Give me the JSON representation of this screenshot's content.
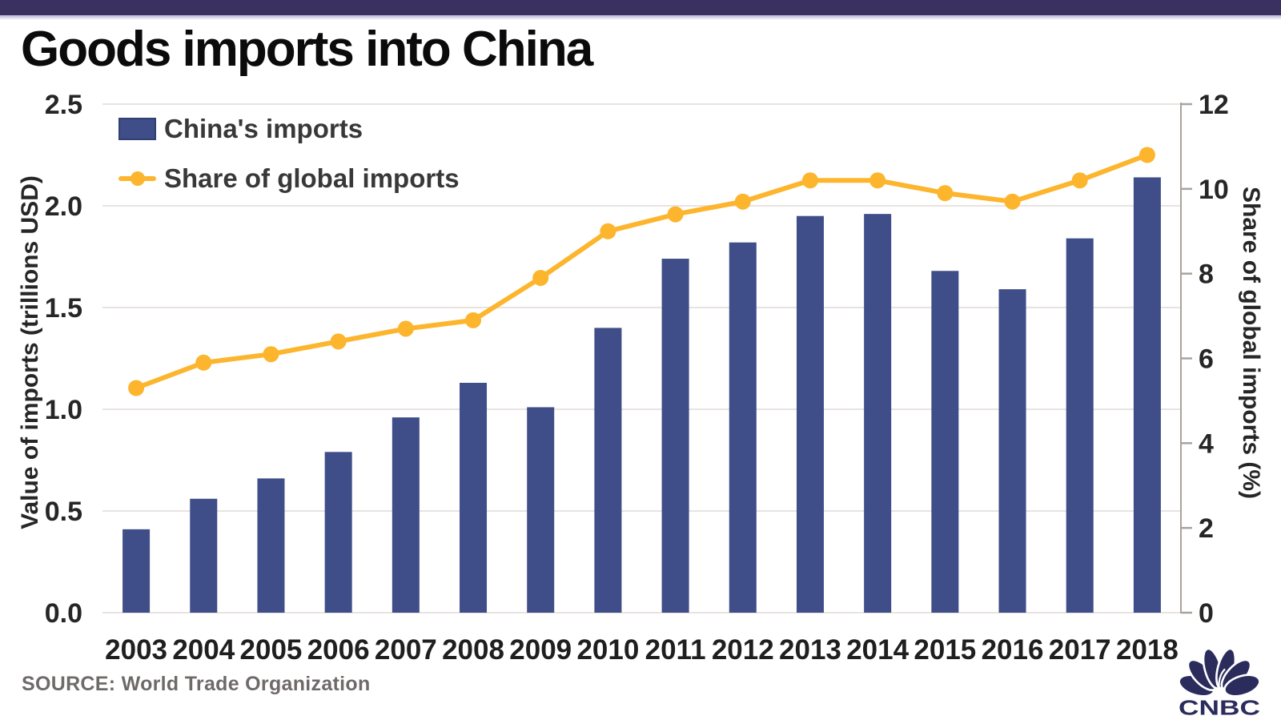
{
  "header": {
    "title": "Goods imports into China"
  },
  "legend": [
    {
      "label": "China's imports",
      "marker": "bar-swatch"
    },
    {
      "label": "Share of global imports",
      "marker": "line-dot-swatch"
    }
  ],
  "footer": {
    "source": "SOURCE: World Trade Organization",
    "logo_text": "CNBC"
  },
  "colors": {
    "top_strip": "#3a3160",
    "bar": "#3f4d88",
    "line": "#fcb52d",
    "grid": "#e8e3e1",
    "axis": "#aaa39d",
    "tick_text": "#262626",
    "label_text": "#1f1f1f",
    "source_text": "#6f6a6a",
    "logo": "#2b2c5c"
  },
  "chart_data": {
    "type": "bar",
    "subtype": "bar+line dual axis",
    "title": "Goods imports into China",
    "categories": [
      "2003",
      "2004",
      "2005",
      "2006",
      "2007",
      "2008",
      "2009",
      "2010",
      "2011",
      "2012",
      "2013",
      "2014",
      "2015",
      "2016",
      "2017",
      "2018"
    ],
    "series": [
      {
        "name": "China's imports",
        "type": "bar",
        "axis": "left",
        "values": [
          0.41,
          0.56,
          0.66,
          0.79,
          0.96,
          1.13,
          1.01,
          1.4,
          1.74,
          1.82,
          1.95,
          1.96,
          1.68,
          1.59,
          1.84,
          2.14
        ]
      },
      {
        "name": "Share of global imports",
        "type": "line",
        "axis": "right",
        "values": [
          5.3,
          5.9,
          6.1,
          6.4,
          6.7,
          6.9,
          7.9,
          9.0,
          9.4,
          9.7,
          10.2,
          10.2,
          9.9,
          9.7,
          10.2,
          10.8
        ]
      }
    ],
    "left_axis": {
      "label": "Value of imports (trillions USD)",
      "min": 0,
      "max": 2.5,
      "ticks": [
        "0.0",
        "0.5",
        "1.0",
        "1.5",
        "2.0",
        "2.5"
      ]
    },
    "right_axis": {
      "label": "Share of global imports (%)",
      "min": 0,
      "max": 12,
      "ticks": [
        "0",
        "2",
        "4",
        "6",
        "8",
        "10",
        "12"
      ]
    },
    "grid": true,
    "legend_position": "top-left"
  }
}
